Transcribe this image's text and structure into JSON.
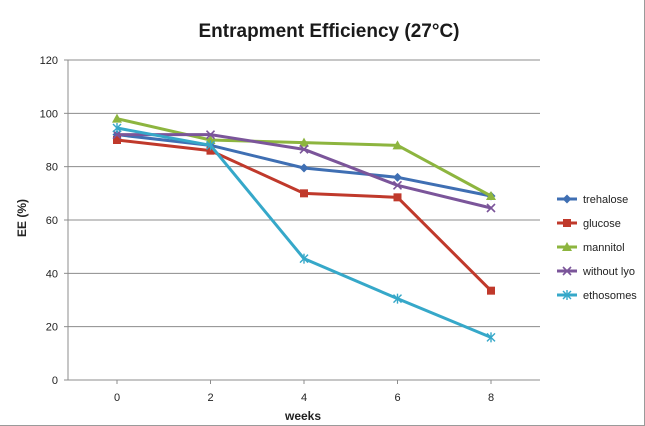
{
  "chart_data": {
    "type": "line",
    "title": "Entrapment Efficiency (27°C)",
    "xlabel": "weeks",
    "ylabel": "EE (%)",
    "x": [
      0,
      2,
      4,
      6,
      8
    ],
    "xlim": [
      0,
      8
    ],
    "ylim": [
      0,
      120
    ],
    "yticks": [
      0,
      20,
      40,
      60,
      80,
      100,
      120
    ],
    "grid": "horizontal",
    "legend_position": "right",
    "series": [
      {
        "name": "trehalose",
        "color": "#3F6FB3",
        "marker": "diamond",
        "values": [
          92,
          88,
          79.5,
          76,
          69
        ]
      },
      {
        "name": "glucose",
        "color": "#C0392B",
        "marker": "square",
        "values": [
          90,
          86,
          70,
          68.5,
          33.5
        ]
      },
      {
        "name": "mannitol",
        "color": "#8DB53F",
        "marker": "triangle",
        "values": [
          98,
          90,
          89,
          88,
          69
        ]
      },
      {
        "name": "without lyo",
        "color": "#7B559A",
        "marker": "x",
        "values": [
          92,
          92,
          86.5,
          73,
          64.5
        ]
      },
      {
        "name": "ethosomes",
        "color": "#36A8C9",
        "marker": "star",
        "values": [
          94.5,
          88,
          45.5,
          30.5,
          16
        ]
      }
    ]
  }
}
